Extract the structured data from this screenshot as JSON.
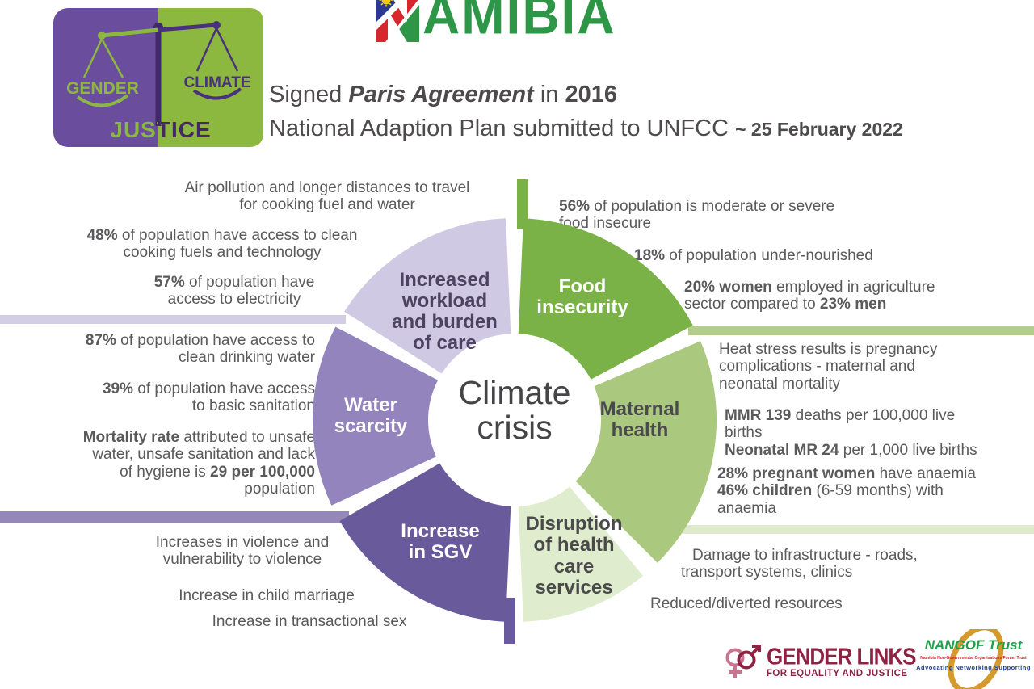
{
  "header": {
    "logo": {
      "left_word": "GENDER",
      "right_word": "CLIMATE",
      "bottom_word": "JUSTICE"
    },
    "country": {
      "first_letter": "N",
      "rest": "AMIBIA"
    },
    "line1": [
      [
        "Signed ",
        0
      ],
      [
        "Paris Agreement",
        2
      ],
      [
        " in ",
        0
      ],
      [
        "2016",
        1
      ]
    ],
    "line2": [
      [
        "National Adaption Plan submitted to UNFCC ",
        0
      ],
      [
        "~ 25 February 2022",
        3
      ]
    ]
  },
  "diagram": {
    "center_title": "Climate\ncrisis",
    "segments": [
      {
        "id": "food-insecurity",
        "label": "Food\ninsecurity",
        "color": "#7ab248",
        "facts": [
          [
            [
              "56%",
              1
            ],
            [
              " of population is moderate or severe\nfood insecure",
              0
            ]
          ],
          [
            [
              "18%",
              1
            ],
            [
              " of population under-nourished",
              0
            ]
          ],
          [
            [
              "20% women",
              1
            ],
            [
              " employed in agriculture\nsector compared to ",
              0
            ],
            [
              "23% men",
              1
            ]
          ]
        ]
      },
      {
        "id": "maternal-health",
        "label": "Maternal\nhealth",
        "color": "#aac87e",
        "facts": [
          [
            [
              "Heat stress results is pregnancy\ncomplications - maternal and\nneonatal mortality",
              0
            ]
          ],
          [
            [
              "MMR 139",
              1
            ],
            [
              " deaths per 100,000 live\nbirths\n",
              0
            ],
            [
              "Neonatal MR 24",
              1
            ],
            [
              " per 1,000 live births",
              0
            ]
          ],
          [
            [
              "28% pregnant women",
              1
            ],
            [
              " have anaemia\n",
              0
            ],
            [
              "46% children",
              1
            ],
            [
              " (6-59 months) with\nanaemia",
              0
            ]
          ]
        ]
      },
      {
        "id": "disruption-health-care",
        "label": "Disruption\nof health\ncare\nservices",
        "color": "#e0ecce",
        "facts": [
          [
            [
              "Damage to infrastructure - roads,\ntransport systems, clinics",
              0
            ]
          ],
          [
            [
              "Reduced/diverted resources",
              0
            ]
          ]
        ]
      },
      {
        "id": "increase-sgv",
        "label": "Increase\nin SGV",
        "color": "#685a9b",
        "facts": [
          [
            [
              "Increases in violence and\nvulnerability to violence",
              0
            ]
          ],
          [
            [
              "Increase in child marriage",
              0
            ]
          ],
          [
            [
              "Increase in transactional sex",
              0
            ]
          ]
        ]
      },
      {
        "id": "water-scarcity",
        "label": "Water\nscarcity",
        "color": "#9384bd",
        "facts": [
          [
            [
              "87%",
              1
            ],
            [
              " of population have access to\nclean drinking water",
              0
            ]
          ],
          [
            [
              "39%",
              1
            ],
            [
              " of population have access\nto basic sanitation",
              0
            ]
          ],
          [
            [
              "Mortality rate",
              1
            ],
            [
              " attributed to unsafe\nwater, unsafe sanitation and lack\nof hygiene is ",
              0
            ],
            [
              "29 per 100,000",
              1
            ],
            [
              "\npopulation",
              0
            ]
          ]
        ]
      },
      {
        "id": "increased-workload",
        "label": "Increased\nworkload\nand burden\nof care",
        "color": "#cfc9e3",
        "facts": [
          [
            [
              "Air pollution and longer distances to travel\nfor cooking fuel and water",
              0
            ]
          ],
          [
            [
              "48%",
              1
            ],
            [
              " of population have access to clean\ncooking fuels and technology",
              0
            ]
          ],
          [
            [
              "57%",
              1
            ],
            [
              " of population have\naccess to electricity",
              0
            ]
          ]
        ]
      }
    ]
  },
  "footer": {
    "gender_links": {
      "name": "GENDER LINKS",
      "tagline": "FOR EQUALITY AND JUSTICE"
    },
    "nangof": {
      "name": "NANGOF Trust",
      "subtitle": "Namibia Non-Governmental Organisations Forum Trust",
      "tagline": "Advocating  Networking  Supporting"
    }
  },
  "palette": {
    "green": "#7ab248",
    "green_mid": "#aac87e",
    "green_pale": "#e0ecce",
    "green_bar": "#b3cd8b",
    "lavender": "#cfc9e3",
    "lavender_bar": "#d3cee6",
    "purple_mid": "#9384bd",
    "purple_dark": "#685a9b",
    "body_text": "#5a5a5c",
    "heading_text": "#4e4a4c",
    "namibia_green": "#2d9747",
    "maroon": "#8e2343",
    "nangof_green": "#21a04a",
    "nangof_orange": "#d6992b"
  }
}
